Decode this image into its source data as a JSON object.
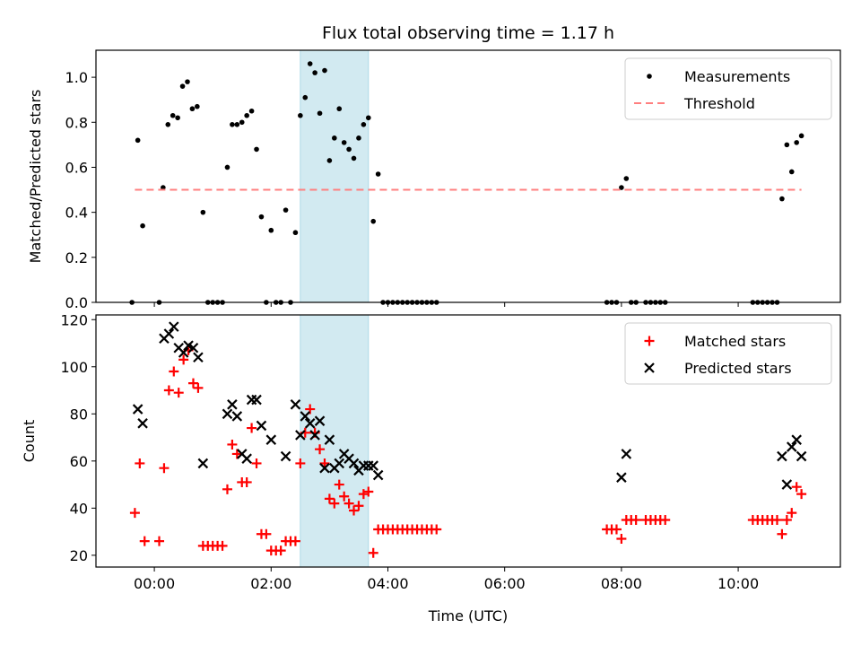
{
  "colors": {
    "measurements": "#000000",
    "threshold": "#ff7f7f",
    "matched": "#ff0000",
    "predicted": "#000000",
    "span": "#add8e6"
  },
  "chart_data": [
    {
      "type": "scatter",
      "title": "Flux total observing time = 1.17 h",
      "ylabel": "Matched/Predicted stars",
      "xlim": [
        "23:00",
        "11:45"
      ],
      "ylim": [
        0,
        1.12
      ],
      "x_ticks": [
        "00:00",
        "02:00",
        "04:00",
        "06:00",
        "08:00",
        "10:00"
      ],
      "y_ticks": [
        "0.0",
        "0.2",
        "0.4",
        "0.6",
        "0.8",
        "1.0"
      ],
      "shaded_span": [
        "02:30",
        "03:40"
      ],
      "legend": {
        "placement": "upper right"
      },
      "series": [
        {
          "name": "Measurements",
          "marker": "dot",
          "points": [
            [
              "23:37",
              0.0
            ],
            [
              "23:43",
              0.72
            ],
            [
              "23:48",
              0.34
            ],
            [
              "00:05",
              0.0
            ],
            [
              "00:09",
              0.51
            ],
            [
              "00:14",
              0.79
            ],
            [
              "00:19",
              0.83
            ],
            [
              "00:24",
              0.82
            ],
            [
              "00:29",
              0.96
            ],
            [
              "00:34",
              0.98
            ],
            [
              "00:39",
              0.86
            ],
            [
              "00:44",
              0.87
            ],
            [
              "00:50",
              0.4
            ],
            [
              "00:55",
              0.0
            ],
            [
              "01:00",
              0.0
            ],
            [
              "01:05",
              0.0
            ],
            [
              "01:10",
              0.0
            ],
            [
              "01:15",
              0.6
            ],
            [
              "01:20",
              0.79
            ],
            [
              "01:25",
              0.79
            ],
            [
              "01:30",
              0.8
            ],
            [
              "01:35",
              0.83
            ],
            [
              "01:40",
              0.85
            ],
            [
              "01:45",
              0.68
            ],
            [
              "01:50",
              0.38
            ],
            [
              "01:55",
              0.0
            ],
            [
              "02:00",
              0.32
            ],
            [
              "02:05",
              0.0
            ],
            [
              "02:10",
              0.0
            ],
            [
              "02:15",
              0.41
            ],
            [
              "02:20",
              0.0
            ],
            [
              "02:25",
              0.31
            ],
            [
              "02:30",
              0.83
            ],
            [
              "02:35",
              0.91
            ],
            [
              "02:40",
              1.06
            ],
            [
              "02:45",
              1.02
            ],
            [
              "02:50",
              0.84
            ],
            [
              "02:55",
              1.03
            ],
            [
              "03:00",
              0.63
            ],
            [
              "03:05",
              0.73
            ],
            [
              "03:10",
              0.86
            ],
            [
              "03:15",
              0.71
            ],
            [
              "03:20",
              0.68
            ],
            [
              "03:25",
              0.64
            ],
            [
              "03:30",
              0.73
            ],
            [
              "03:35",
              0.79
            ],
            [
              "03:40",
              0.82
            ],
            [
              "03:45",
              0.36
            ],
            [
              "03:50",
              0.57
            ],
            [
              "03:55",
              0.0
            ],
            [
              "04:00",
              0.0
            ],
            [
              "04:05",
              0.0
            ],
            [
              "04:10",
              0.0
            ],
            [
              "04:15",
              0.0
            ],
            [
              "04:20",
              0.0
            ],
            [
              "04:25",
              0.0
            ],
            [
              "04:30",
              0.0
            ],
            [
              "04:35",
              0.0
            ],
            [
              "04:40",
              0.0
            ],
            [
              "04:45",
              0.0
            ],
            [
              "04:50",
              0.0
            ],
            [
              "07:45",
              0.0
            ],
            [
              "07:50",
              0.0
            ],
            [
              "07:55",
              0.0
            ],
            [
              "08:00",
              0.51
            ],
            [
              "08:05",
              0.55
            ],
            [
              "08:10",
              0.0
            ],
            [
              "08:15",
              0.0
            ],
            [
              "08:25",
              0.0
            ],
            [
              "08:30",
              0.0
            ],
            [
              "08:35",
              0.0
            ],
            [
              "08:40",
              0.0
            ],
            [
              "08:45",
              0.0
            ],
            [
              "10:15",
              0.0
            ],
            [
              "10:20",
              0.0
            ],
            [
              "10:25",
              0.0
            ],
            [
              "10:30",
              0.0
            ],
            [
              "10:35",
              0.0
            ],
            [
              "10:40",
              0.0
            ],
            [
              "10:45",
              0.46
            ],
            [
              "10:50",
              0.7
            ],
            [
              "10:55",
              0.58
            ],
            [
              "11:00",
              0.71
            ],
            [
              "11:05",
              0.74
            ]
          ]
        },
        {
          "name": "Threshold",
          "style": "dashed-line",
          "points": [
            [
              "23:40",
              0.5
            ],
            [
              "11:05",
              0.5
            ]
          ]
        }
      ]
    },
    {
      "type": "scatter",
      "xlabel": "Time (UTC)",
      "ylabel": "Count",
      "xlim": [
        "23:00",
        "11:45"
      ],
      "ylim": [
        15,
        122
      ],
      "x_ticks": [
        "00:00",
        "02:00",
        "04:00",
        "06:00",
        "08:00",
        "10:00"
      ],
      "y_ticks": [
        "20",
        "40",
        "60",
        "80",
        "100",
        "120"
      ],
      "shaded_span": [
        "02:30",
        "03:40"
      ],
      "legend": {
        "placement": "upper right"
      },
      "series": [
        {
          "name": "Matched stars",
          "marker": "plus",
          "points": [
            [
              "23:40",
              38
            ],
            [
              "23:45",
              59
            ],
            [
              "23:50",
              26
            ],
            [
              "00:05",
              26
            ],
            [
              "00:10",
              57
            ],
            [
              "00:15",
              90
            ],
            [
              "00:20",
              98
            ],
            [
              "00:25",
              89
            ],
            [
              "00:30",
              103
            ],
            [
              "00:35",
              107
            ],
            [
              "00:40",
              93
            ],
            [
              "00:45",
              91
            ],
            [
              "00:50",
              24
            ],
            [
              "00:55",
              24
            ],
            [
              "01:00",
              24
            ],
            [
              "01:05",
              24
            ],
            [
              "01:10",
              24
            ],
            [
              "01:15",
              48
            ],
            [
              "01:20",
              67
            ],
            [
              "01:25",
              63
            ],
            [
              "01:30",
              51
            ],
            [
              "01:35",
              51
            ],
            [
              "01:40",
              74
            ],
            [
              "01:45",
              59
            ],
            [
              "01:50",
              29
            ],
            [
              "01:55",
              29
            ],
            [
              "02:00",
              22
            ],
            [
              "02:05",
              22
            ],
            [
              "02:10",
              22
            ],
            [
              "02:15",
              26
            ],
            [
              "02:20",
              26
            ],
            [
              "02:25",
              26
            ],
            [
              "02:30",
              59
            ],
            [
              "02:35",
              72
            ],
            [
              "02:40",
              82
            ],
            [
              "02:45",
              72
            ],
            [
              "02:50",
              65
            ],
            [
              "02:55",
              59
            ],
            [
              "03:00",
              44
            ],
            [
              "03:05",
              42
            ],
            [
              "03:10",
              50
            ],
            [
              "03:15",
              45
            ],
            [
              "03:20",
              42
            ],
            [
              "03:25",
              39
            ],
            [
              "03:30",
              41
            ],
            [
              "03:35",
              46
            ],
            [
              "03:40",
              47
            ],
            [
              "03:45",
              21
            ],
            [
              "03:50",
              31
            ],
            [
              "03:55",
              31
            ],
            [
              "04:00",
              31
            ],
            [
              "04:05",
              31
            ],
            [
              "04:10",
              31
            ],
            [
              "04:15",
              31
            ],
            [
              "04:20",
              31
            ],
            [
              "04:25",
              31
            ],
            [
              "04:30",
              31
            ],
            [
              "04:35",
              31
            ],
            [
              "04:40",
              31
            ],
            [
              "04:45",
              31
            ],
            [
              "04:50",
              31
            ],
            [
              "07:45",
              31
            ],
            [
              "07:50",
              31
            ],
            [
              "07:55",
              31
            ],
            [
              "08:00",
              27
            ],
            [
              "08:05",
              35
            ],
            [
              "08:10",
              35
            ],
            [
              "08:15",
              35
            ],
            [
              "08:25",
              35
            ],
            [
              "08:30",
              35
            ],
            [
              "08:35",
              35
            ],
            [
              "08:40",
              35
            ],
            [
              "08:45",
              35
            ],
            [
              "10:15",
              35
            ],
            [
              "10:20",
              35
            ],
            [
              "10:25",
              35
            ],
            [
              "10:30",
              35
            ],
            [
              "10:35",
              35
            ],
            [
              "10:40",
              35
            ],
            [
              "10:45",
              29
            ],
            [
              "10:50",
              35
            ],
            [
              "10:55",
              38
            ],
            [
              "11:00",
              49
            ],
            [
              "11:05",
              46
            ]
          ]
        },
        {
          "name": "Predicted stars",
          "marker": "x",
          "points": [
            [
              "23:43",
              82
            ],
            [
              "23:48",
              76
            ],
            [
              "00:10",
              112
            ],
            [
              "00:15",
              114
            ],
            [
              "00:20",
              117
            ],
            [
              "00:25",
              108
            ],
            [
              "00:30",
              106
            ],
            [
              "00:35",
              109
            ],
            [
              "00:40",
              108
            ],
            [
              "00:45",
              104
            ],
            [
              "00:50",
              59
            ],
            [
              "01:15",
              80
            ],
            [
              "01:20",
              84
            ],
            [
              "01:25",
              79
            ],
            [
              "01:30",
              63
            ],
            [
              "01:35",
              61
            ],
            [
              "01:40",
              86
            ],
            [
              "01:45",
              86
            ],
            [
              "01:50",
              75
            ],
            [
              "02:00",
              69
            ],
            [
              "02:15",
              62
            ],
            [
              "02:25",
              84
            ],
            [
              "02:30",
              71
            ],
            [
              "02:35",
              79
            ],
            [
              "02:40",
              76
            ],
            [
              "02:45",
              71
            ],
            [
              "02:50",
              77
            ],
            [
              "02:55",
              57
            ],
            [
              "03:00",
              69
            ],
            [
              "03:05",
              57
            ],
            [
              "03:10",
              59
            ],
            [
              "03:15",
              63
            ],
            [
              "03:20",
              61
            ],
            [
              "03:25",
              59
            ],
            [
              "03:30",
              56
            ],
            [
              "03:35",
              58
            ],
            [
              "03:40",
              58
            ],
            [
              "03:45",
              58
            ],
            [
              "03:50",
              54
            ],
            [
              "08:00",
              53
            ],
            [
              "08:05",
              63
            ],
            [
              "10:45",
              62
            ],
            [
              "10:50",
              50
            ],
            [
              "10:55",
              66
            ],
            [
              "11:00",
              69
            ],
            [
              "11:05",
              62
            ]
          ]
        }
      ]
    }
  ]
}
